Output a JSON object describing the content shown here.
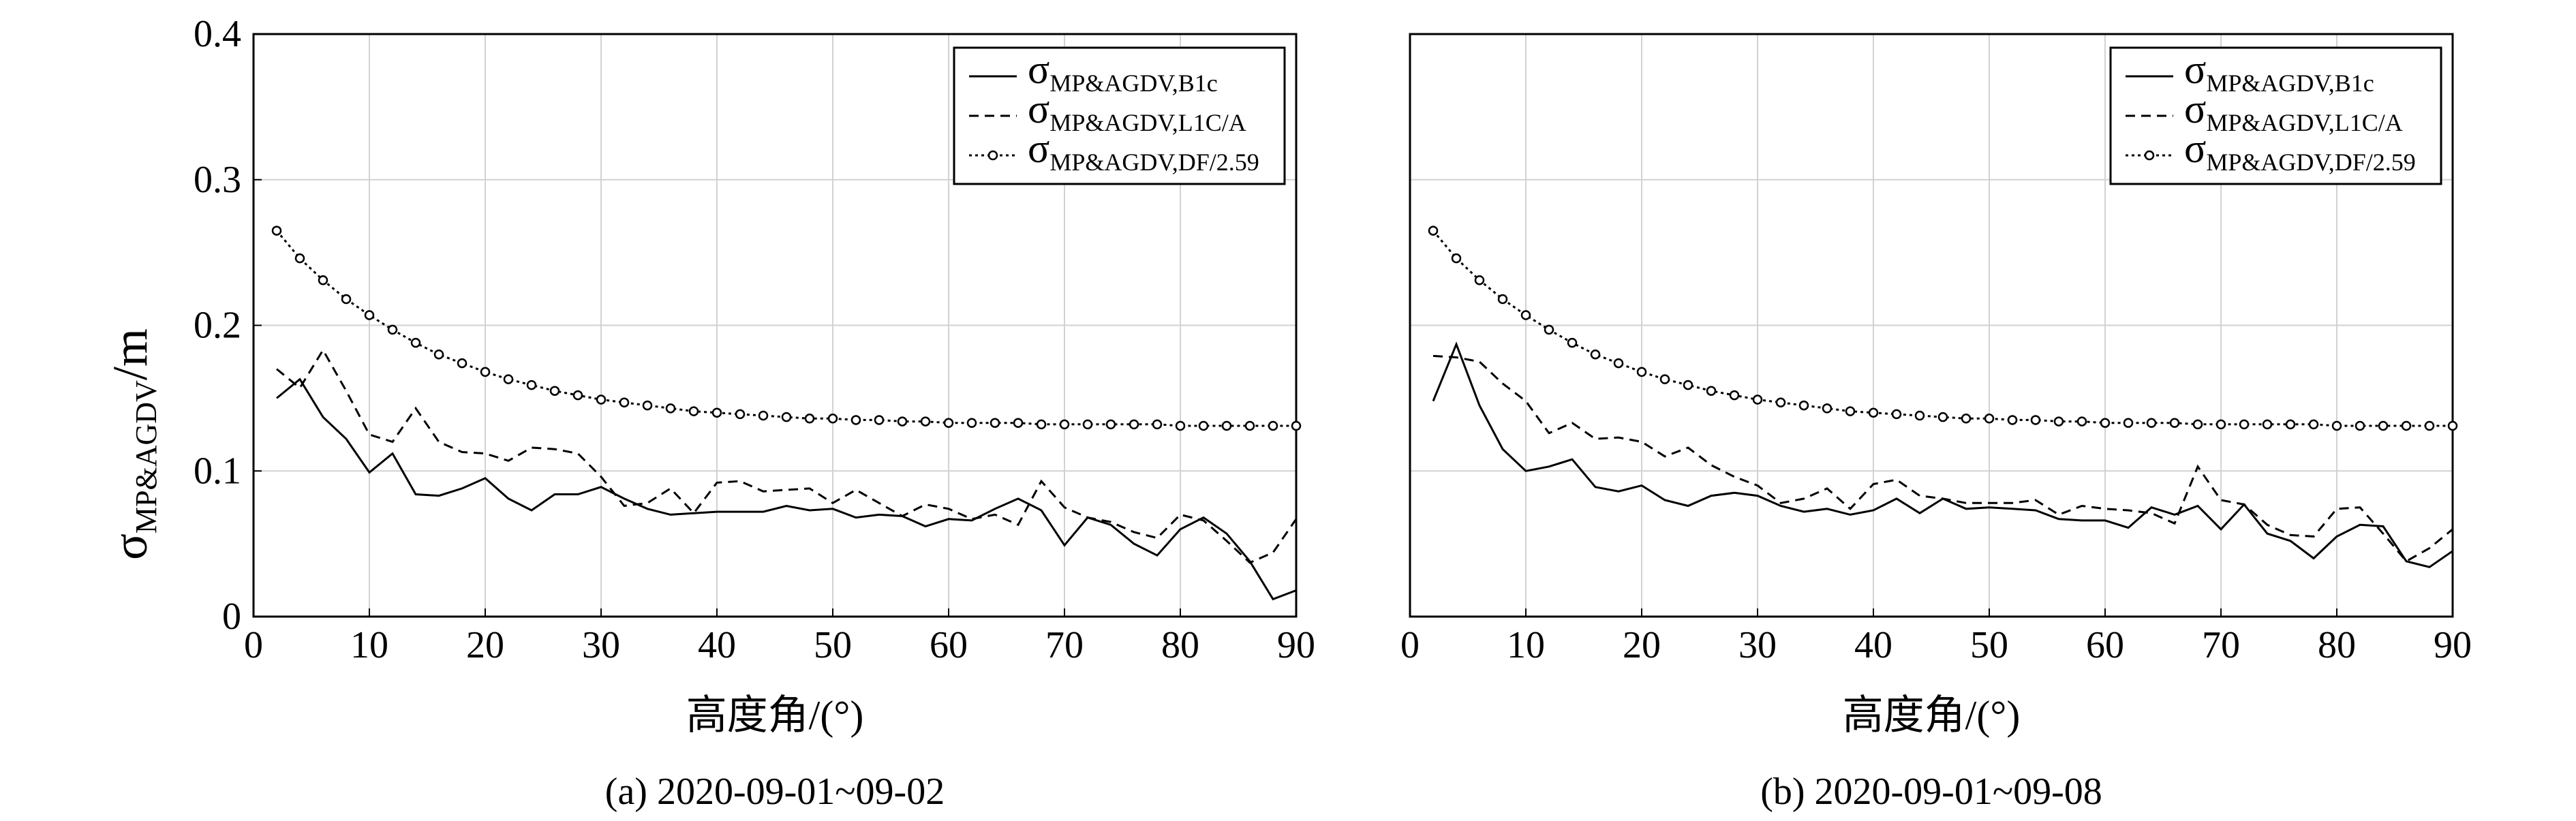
{
  "y_axis_label": {
    "symbol": "σ",
    "subscript": "MP&AGDV",
    "unit": "/m"
  },
  "chart_data": [
    {
      "type": "line",
      "caption": "(a) 2020-09-01~09-02",
      "xlabel": "高度角/(°)",
      "xlim": [
        0,
        90
      ],
      "ylim": [
        0,
        0.4
      ],
      "xticks": [
        "0",
        "10",
        "20",
        "30",
        "40",
        "50",
        "60",
        "70",
        "80",
        "90"
      ],
      "yticks": [
        "0",
        "0.1",
        "0.2",
        "0.3",
        "0.4"
      ],
      "grid": true,
      "legend_position": "top-right",
      "x": [
        2,
        4,
        6,
        8,
        10,
        12,
        14,
        16,
        18,
        20,
        22,
        24,
        26,
        28,
        30,
        32,
        34,
        36,
        38,
        40,
        42,
        44,
        46,
        48,
        50,
        52,
        54,
        56,
        58,
        60,
        62,
        64,
        66,
        68,
        70,
        72,
        74,
        76,
        78,
        80,
        82,
        84,
        86,
        88,
        90
      ],
      "series": [
        {
          "name_symbol": "σ",
          "name_subscript": "MP&AGDV,B1c",
          "style": "solid",
          "values": [
            0.15,
            0.163,
            0.137,
            0.122,
            0.099,
            0.112,
            0.084,
            0.083,
            0.088,
            0.095,
            0.081,
            0.073,
            0.084,
            0.084,
            0.089,
            0.081,
            0.074,
            0.07,
            0.071,
            0.072,
            0.072,
            0.072,
            0.076,
            0.073,
            0.074,
            0.068,
            0.07,
            0.069,
            0.062,
            0.067,
            0.066,
            0.074,
            0.081,
            0.073,
            0.049,
            0.068,
            0.063,
            0.05,
            0.042,
            0.06,
            0.068,
            0.057,
            0.038,
            0.012,
            0.018
          ]
        },
        {
          "name_symbol": "σ",
          "name_subscript": "MP&AGDV,L1C/A",
          "style": "dashed",
          "values": [
            0.17,
            0.157,
            0.183,
            0.155,
            0.125,
            0.12,
            0.143,
            0.12,
            0.113,
            0.112,
            0.107,
            0.116,
            0.115,
            0.112,
            0.096,
            0.076,
            0.078,
            0.088,
            0.071,
            0.092,
            0.093,
            0.086,
            0.087,
            0.088,
            0.078,
            0.087,
            0.078,
            0.069,
            0.077,
            0.074,
            0.067,
            0.07,
            0.063,
            0.093,
            0.075,
            0.068,
            0.065,
            0.058,
            0.054,
            0.07,
            0.066,
            0.052,
            0.037,
            0.044,
            0.067
          ]
        },
        {
          "name_symbol": "σ",
          "name_subscript": "MP&AGDV,DF/2.59",
          "style": "dotted-circle",
          "values": [
            0.265,
            0.246,
            0.231,
            0.218,
            0.207,
            0.197,
            0.188,
            0.18,
            0.174,
            0.168,
            0.163,
            0.159,
            0.155,
            0.152,
            0.149,
            0.147,
            0.145,
            0.143,
            0.141,
            0.14,
            0.139,
            0.138,
            0.137,
            0.136,
            0.136,
            0.135,
            0.135,
            0.134,
            0.134,
            0.133,
            0.133,
            0.133,
            0.133,
            0.132,
            0.132,
            0.132,
            0.132,
            0.132,
            0.132,
            0.131,
            0.131,
            0.131,
            0.131,
            0.131,
            0.131
          ]
        }
      ]
    },
    {
      "type": "line",
      "caption": "(b) 2020-09-01~09-08",
      "xlabel": "高度角/(°)",
      "xlim": [
        0,
        90
      ],
      "ylim": [
        0,
        0.4
      ],
      "xticks": [
        "0",
        "10",
        "20",
        "30",
        "40",
        "50",
        "60",
        "70",
        "80",
        "90"
      ],
      "yticks": [],
      "grid": true,
      "legend_position": "top-right",
      "x": [
        2,
        4,
        6,
        8,
        10,
        12,
        14,
        16,
        18,
        20,
        22,
        24,
        26,
        28,
        30,
        32,
        34,
        36,
        38,
        40,
        42,
        44,
        46,
        48,
        50,
        52,
        54,
        56,
        58,
        60,
        62,
        64,
        66,
        68,
        70,
        72,
        74,
        76,
        78,
        80,
        82,
        84,
        86,
        88,
        90
      ],
      "series": [
        {
          "name_symbol": "σ",
          "name_subscript": "MP&AGDV,B1c",
          "style": "solid",
          "values": [
            0.148,
            0.187,
            0.145,
            0.115,
            0.1,
            0.103,
            0.108,
            0.089,
            0.086,
            0.09,
            0.08,
            0.076,
            0.083,
            0.085,
            0.083,
            0.076,
            0.072,
            0.074,
            0.07,
            0.073,
            0.081,
            0.071,
            0.081,
            0.074,
            0.075,
            0.074,
            0.073,
            0.067,
            0.066,
            0.066,
            0.061,
            0.075,
            0.07,
            0.076,
            0.06,
            0.077,
            0.057,
            0.052,
            0.04,
            0.055,
            0.063,
            0.062,
            0.038,
            0.034,
            0.045
          ]
        },
        {
          "name_symbol": "σ",
          "name_subscript": "MP&AGDV,L1C/A",
          "style": "dashed",
          "values": [
            0.179,
            0.178,
            0.175,
            0.16,
            0.148,
            0.126,
            0.133,
            0.122,
            0.123,
            0.12,
            0.11,
            0.116,
            0.104,
            0.096,
            0.09,
            0.078,
            0.081,
            0.088,
            0.074,
            0.091,
            0.094,
            0.083,
            0.081,
            0.078,
            0.078,
            0.078,
            0.08,
            0.07,
            0.076,
            0.074,
            0.073,
            0.071,
            0.064,
            0.103,
            0.08,
            0.077,
            0.063,
            0.056,
            0.055,
            0.074,
            0.075,
            0.057,
            0.038,
            0.047,
            0.06
          ]
        },
        {
          "name_symbol": "σ",
          "name_subscript": "MP&AGDV,DF/2.59",
          "style": "dotted-circle",
          "values": [
            0.265,
            0.246,
            0.231,
            0.218,
            0.207,
            0.197,
            0.188,
            0.18,
            0.174,
            0.168,
            0.163,
            0.159,
            0.155,
            0.152,
            0.149,
            0.147,
            0.145,
            0.143,
            0.141,
            0.14,
            0.139,
            0.138,
            0.137,
            0.136,
            0.136,
            0.135,
            0.135,
            0.134,
            0.134,
            0.133,
            0.133,
            0.133,
            0.133,
            0.132,
            0.132,
            0.132,
            0.132,
            0.132,
            0.132,
            0.131,
            0.131,
            0.131,
            0.131,
            0.131,
            0.131
          ]
        }
      ]
    }
  ]
}
